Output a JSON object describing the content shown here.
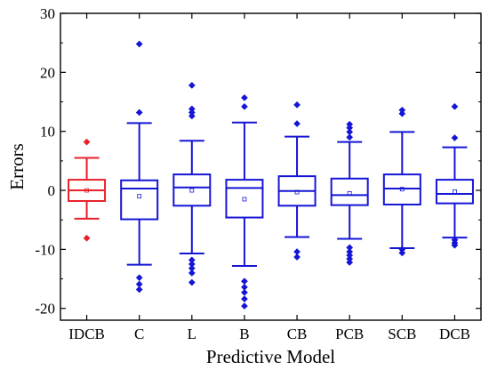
{
  "chart_data": {
    "type": "box",
    "title": "",
    "xlabel": "Predictive Model",
    "ylabel": "Errors",
    "ylim": [
      -22,
      30
    ],
    "yticks": [
      -20,
      -10,
      0,
      10,
      20,
      30
    ],
    "grid": false,
    "legend": "none",
    "categories": [
      "IDCB",
      "C",
      "L",
      "B",
      "CB",
      "PCB",
      "SCB",
      "DCB"
    ],
    "colors": [
      "#e8202a",
      "#1515d6",
      "#1515d6",
      "#1515d6",
      "#1515d6",
      "#1515d6",
      "#1515d6",
      "#1515d6"
    ],
    "boxes": [
      {
        "whisker_low": -4.8,
        "q1": -1.8,
        "median": 0.0,
        "q3": 1.8,
        "whisker_high": 5.5,
        "mean": 0.0,
        "outliers": [
          8.2,
          -8.1
        ]
      },
      {
        "whisker_low": -12.6,
        "q1": -4.9,
        "median": 0.3,
        "q3": 1.7,
        "whisker_high": 11.4,
        "mean": -1.0,
        "outliers": [
          24.8,
          13.2,
          -14.8,
          -15.9,
          -16.8
        ]
      },
      {
        "whisker_low": -10.7,
        "q1": -2.6,
        "median": 0.5,
        "q3": 2.7,
        "whisker_high": 8.4,
        "mean": 0.0,
        "outliers": [
          17.8,
          13.8,
          13.2,
          12.6,
          -11.8,
          -12.5,
          -13.2,
          -14.0,
          -15.6
        ]
      },
      {
        "whisker_low": -12.8,
        "q1": -4.6,
        "median": 0.4,
        "q3": 1.8,
        "whisker_high": 11.5,
        "mean": -1.5,
        "outliers": [
          15.7,
          14.2,
          -15.4,
          -16.4,
          -17.3,
          -18.4,
          -19.6
        ]
      },
      {
        "whisker_low": -7.9,
        "q1": -2.6,
        "median": -0.1,
        "q3": 2.4,
        "whisker_high": 9.1,
        "mean": -0.3,
        "outliers": [
          14.5,
          11.3,
          -10.4,
          -11.3
        ]
      },
      {
        "whisker_low": -8.2,
        "q1": -2.5,
        "median": -0.8,
        "q3": 2.0,
        "whisker_high": 8.2,
        "mean": -0.5,
        "outliers": [
          11.2,
          10.6,
          9.9,
          9.0,
          -9.7,
          -10.4,
          -11.0,
          -11.6,
          -12.2
        ]
      },
      {
        "whisker_low": -9.8,
        "q1": -2.4,
        "median": 0.3,
        "q3": 2.7,
        "whisker_high": 9.9,
        "mean": 0.2,
        "outliers": [
          13.6,
          13.0,
          -10.0,
          -10.6
        ]
      },
      {
        "whisker_low": -8.0,
        "q1": -2.2,
        "median": -0.6,
        "q3": 1.8,
        "whisker_high": 7.3,
        "mean": -0.2,
        "outliers": [
          14.2,
          8.9,
          -8.4,
          -8.9,
          -9.3
        ]
      }
    ]
  }
}
